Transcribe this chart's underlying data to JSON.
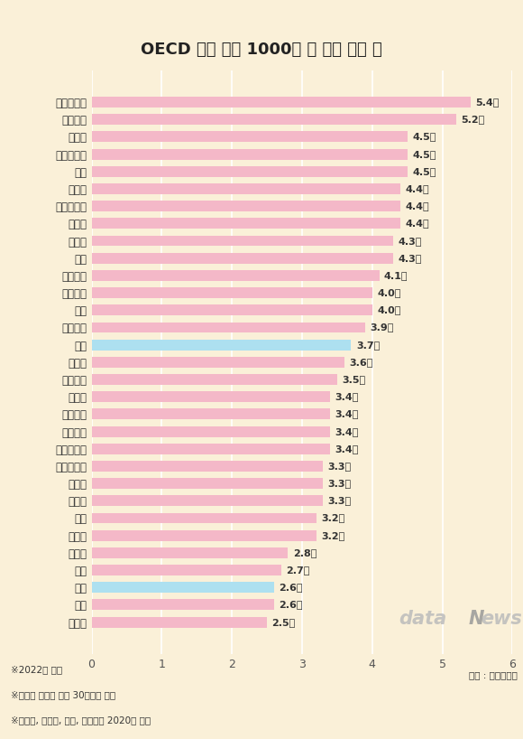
{
  "title": "OECD 국가 인구 1000명 당 임상 의사 수",
  "title_bg": "#F0D080",
  "categories": [
    "오스트리아",
    "노르웨이",
    "스페인",
    "리투아니아",
    "독일",
    "스위스",
    "아이슬란드",
    "덴마크",
    "스웨덴",
    "체코",
    "이탈리아",
    "아일랜드",
    "호주",
    "네덜란드",
    "평균",
    "핀란드",
    "뉴질랜드",
    "폴란드",
    "라트비아",
    "이스라엘",
    "에스토니아",
    "슬로베니아",
    "형가리",
    "벨기에",
    "영국",
    "프랑스",
    "캐나다",
    "미국",
    "한국",
    "일본",
    "멕시코"
  ],
  "values": [
    5.4,
    5.2,
    4.5,
    4.5,
    4.5,
    4.4,
    4.4,
    4.4,
    4.3,
    4.3,
    4.1,
    4.0,
    4.0,
    3.9,
    3.7,
    3.6,
    3.5,
    3.4,
    3.4,
    3.4,
    3.4,
    3.3,
    3.3,
    3.3,
    3.2,
    3.2,
    2.8,
    2.7,
    2.6,
    2.6,
    2.5
  ],
  "bar_color_default": "#F4B8C8",
  "bar_color_highlight": "#ADE0F0",
  "highlight_indices": [
    14,
    28
  ],
  "label_suffix": "명",
  "footnote_lines": [
    "※2022년 기준",
    "※평균은 통계가 있는 30개국의 평균",
    "※덴마크, 핀란드, 일본, 스웨덴은 2020년 수치"
  ],
  "source_text": "자료 : 보건복지부",
  "bg_color": "#FAF0D8",
  "xlim": [
    0,
    6
  ],
  "xticks": [
    0,
    1,
    2,
    3,
    4,
    5,
    6
  ]
}
